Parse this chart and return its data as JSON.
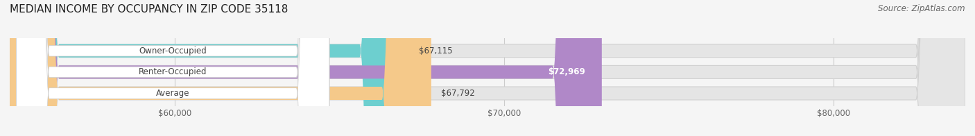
{
  "title": "MEDIAN INCOME BY OCCUPANCY IN ZIP CODE 35118",
  "source": "Source: ZipAtlas.com",
  "categories": [
    "Owner-Occupied",
    "Renter-Occupied",
    "Average"
  ],
  "values": [
    67115,
    72969,
    67792
  ],
  "bar_colors": [
    "#6dcfcf",
    "#b088c8",
    "#f5c98a"
  ],
  "label_colors": [
    "#333333",
    "#ffffff",
    "#333333"
  ],
  "value_labels": [
    "$67,115",
    "$72,969",
    "$67,792"
  ],
  "xmin": 55000,
  "xmax": 84000,
  "xticks": [
    60000,
    70000,
    80000
  ],
  "xtick_labels": [
    "$60,000",
    "$70,000",
    "$80,000"
  ],
  "background_color": "#f5f5f5",
  "bar_background_color": "#e5e5e5",
  "bar_bg_edge_color": "#d0d0d0",
  "title_fontsize": 11,
  "source_fontsize": 8.5,
  "tick_fontsize": 8.5,
  "label_fontsize": 8.5,
  "value_fontsize": 8.5
}
